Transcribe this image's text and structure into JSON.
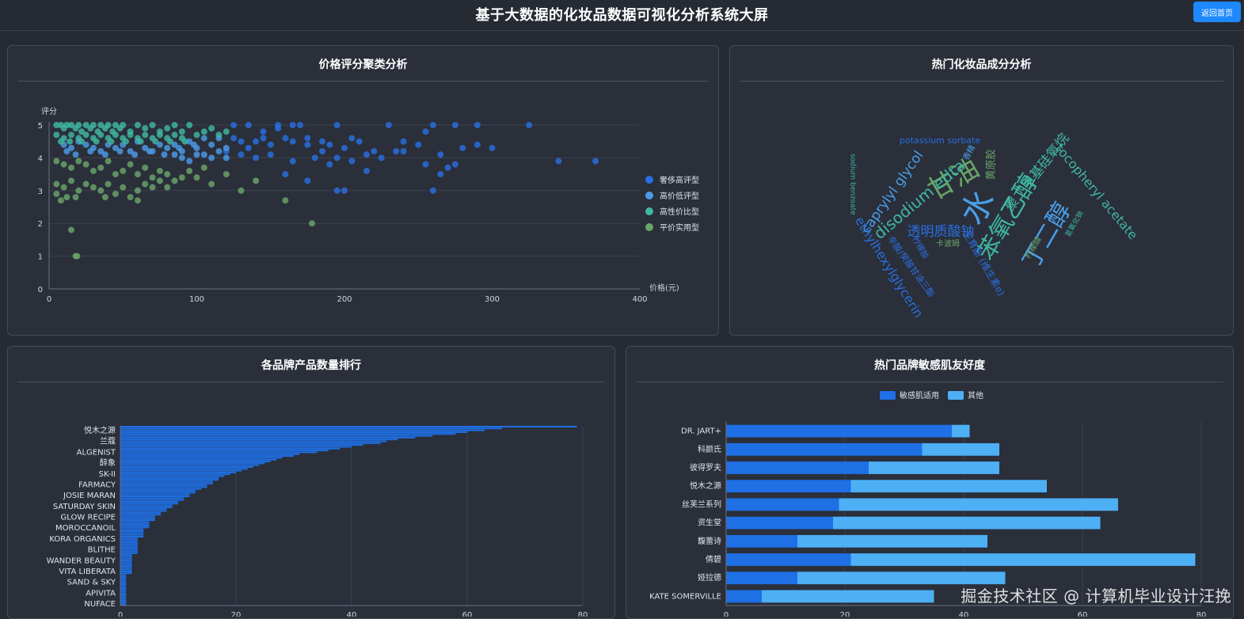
{
  "header": {
    "title": "基于大数据的化妆品数据可视化分析系统大屏",
    "back_label": "返回首页"
  },
  "panels": {
    "scatter": "价格评分聚类分析",
    "wordcloud": "热门化妆品成分分析",
    "brands": "各品牌产品数量排行",
    "sensitive": "热门品牌敏感肌友好度"
  },
  "watermark": "掘金技术社区 @ 计算机毕业设计汪挽",
  "colors": {
    "luxury": "#2a6fe0",
    "highlow": "#4c9be8",
    "value": "#3fb7a2",
    "budget": "#6aa56a",
    "bar": "#1f6fe5",
    "bar_light": "#4db0f5"
  },
  "chart_data": [
    {
      "id": "scatter",
      "type": "scatter",
      "xlabel": "价格(元)",
      "ylabel": "评分",
      "xlim": [
        0,
        400
      ],
      "ylim": [
        0,
        5
      ],
      "xticks": [
        0,
        100,
        200,
        300,
        400
      ],
      "yticks": [
        0,
        1,
        2,
        3,
        4,
        5
      ],
      "legend_position": "right",
      "series": [
        {
          "name": "奢侈高评型",
          "color": "#2a6fe0",
          "points": [
            [
              125,
              5
            ],
            [
              135,
              5
            ],
            [
              155,
              5
            ],
            [
              165,
              5
            ],
            [
              170,
              5
            ],
            [
              195,
              5
            ],
            [
              230,
              5
            ],
            [
              260,
              5
            ],
            [
              275,
              5
            ],
            [
              290,
              5
            ],
            [
              325,
              5
            ],
            [
              125,
              4.6
            ],
            [
              130,
              4.5
            ],
            [
              140,
              4.5
            ],
            [
              145,
              4.6
            ],
            [
              150,
              4.4
            ],
            [
              160,
              4.6
            ],
            [
              165,
              4.5
            ],
            [
              175,
              4.6
            ],
            [
              185,
              4.5
            ],
            [
              190,
              4.4
            ],
            [
              200,
              4.3
            ],
            [
              210,
              4.5
            ],
            [
              220,
              4.2
            ],
            [
              235,
              4.2
            ],
            [
              240,
              4.5
            ],
            [
              250,
              4.4
            ],
            [
              255,
              4.8
            ],
            [
              280,
              4.3
            ],
            [
              290,
              4.4
            ],
            [
              300,
              4.3
            ],
            [
              130,
              4.1
            ],
            [
              140,
              4.0
            ],
            [
              150,
              4.1
            ],
            [
              165,
              3.9
            ],
            [
              180,
              4.0
            ],
            [
              190,
              3.8
            ],
            [
              195,
              4.0
            ],
            [
              205,
              3.9
            ],
            [
              215,
              4.1
            ],
            [
              225,
              4.0
            ],
            [
              240,
              4.2
            ],
            [
              255,
              3.8
            ],
            [
              265,
              4.1
            ],
            [
              275,
              3.8
            ],
            [
              345,
              3.9
            ],
            [
              370,
              3.9
            ],
            [
              160,
              3.5
            ],
            [
              175,
              3.3
            ],
            [
              195,
              3.0
            ],
            [
              200,
              3.0
            ],
            [
              215,
              3.6
            ],
            [
              260,
              3.0
            ],
            [
              265,
              3.5
            ],
            [
              270,
              3.7
            ],
            [
              145,
              4.8
            ],
            [
              155,
              4.9
            ],
            [
              175,
              4.4
            ],
            [
              185,
              4.2
            ],
            [
              205,
              4.6
            ],
            [
              120,
              4.2
            ],
            [
              135,
              4.3
            ]
          ]
        },
        {
          "name": "高价低评型",
          "color": "#4c9be8",
          "points": [
            [
              80,
              4.3
            ],
            [
              85,
              4.4
            ],
            [
              90,
              4.2
            ],
            [
              95,
              4.5
            ],
            [
              100,
              4.3
            ],
            [
              105,
              4.1
            ],
            [
              110,
              4.4
            ],
            [
              115,
              4.6
            ],
            [
              120,
              4.3
            ],
            [
              90,
              4.0
            ],
            [
              100,
              4.1
            ],
            [
              110,
              4.0
            ],
            [
              105,
              4.6
            ],
            [
              115,
              4.2
            ],
            [
              120,
              4.0
            ],
            [
              85,
              4.1
            ],
            [
              95,
              3.9
            ],
            [
              75,
              4.4
            ],
            [
              70,
              4.2
            ],
            [
              65,
              4.3
            ],
            [
              60,
              4.5
            ],
            [
              55,
              4.2
            ],
            [
              50,
              4.4
            ],
            [
              45,
              4.3
            ],
            [
              40,
              4.4
            ],
            [
              35,
              4.2
            ],
            [
              30,
              4.3
            ],
            [
              25,
              4.4
            ],
            [
              20,
              4.5
            ],
            [
              15,
              4.3
            ],
            [
              10,
              4.4
            ],
            [
              12,
              4.2
            ],
            [
              18,
              4.1
            ],
            [
              28,
              4.2
            ],
            [
              38,
              4.1
            ],
            [
              48,
              4.2
            ],
            [
              58,
              4.1
            ],
            [
              68,
              4.2
            ],
            [
              78,
              4.1
            ],
            [
              88,
              4.3
            ],
            [
              98,
              4.4
            ]
          ]
        },
        {
          "name": "高性价比型",
          "color": "#3fb7a2",
          "points": [
            [
              5,
              5
            ],
            [
              8,
              5
            ],
            [
              10,
              4.9
            ],
            [
              12,
              5
            ],
            [
              15,
              5
            ],
            [
              18,
              4.9
            ],
            [
              20,
              5
            ],
            [
              22,
              4.8
            ],
            [
              25,
              5
            ],
            [
              28,
              4.9
            ],
            [
              30,
              5
            ],
            [
              33,
              4.8
            ],
            [
              35,
              5
            ],
            [
              38,
              4.9
            ],
            [
              40,
              5
            ],
            [
              43,
              4.8
            ],
            [
              45,
              5
            ],
            [
              48,
              4.9
            ],
            [
              50,
              5
            ],
            [
              55,
              4.8
            ],
            [
              60,
              5
            ],
            [
              65,
              4.9
            ],
            [
              70,
              5
            ],
            [
              75,
              4.8
            ],
            [
              80,
              4.9
            ],
            [
              85,
              5
            ],
            [
              90,
              4.8
            ],
            [
              95,
              5
            ],
            [
              5,
              4.7
            ],
            [
              10,
              4.6
            ],
            [
              15,
              4.7
            ],
            [
              20,
              4.6
            ],
            [
              25,
              4.7
            ],
            [
              30,
              4.6
            ],
            [
              35,
              4.7
            ],
            [
              40,
              4.6
            ],
            [
              45,
              4.7
            ],
            [
              50,
              4.6
            ],
            [
              55,
              4.7
            ],
            [
              60,
              4.6
            ],
            [
              65,
              4.7
            ],
            [
              70,
              4.6
            ],
            [
              75,
              4.7
            ],
            [
              80,
              4.6
            ],
            [
              85,
              4.7
            ],
            [
              90,
              4.6
            ],
            [
              100,
              4.7
            ],
            [
              105,
              4.8
            ],
            [
              110,
              4.9
            ],
            [
              115,
              4.7
            ],
            [
              120,
              4.8
            ],
            [
              8,
              4.5
            ],
            [
              14,
              4.5
            ],
            [
              22,
              4.5
            ],
            [
              32,
              4.5
            ],
            [
              42,
              4.5
            ],
            [
              52,
              4.5
            ],
            [
              62,
              4.5
            ],
            [
              72,
              4.5
            ],
            [
              82,
              4.5
            ],
            [
              92,
              4.5
            ]
          ]
        },
        {
          "name": "平价实用型",
          "color": "#6aa56a",
          "points": [
            [
              5,
              3.9
            ],
            [
              10,
              3.8
            ],
            [
              15,
              3.7
            ],
            [
              20,
              3.9
            ],
            [
              25,
              3.8
            ],
            [
              30,
              3.6
            ],
            [
              35,
              3.7
            ],
            [
              40,
              3.9
            ],
            [
              45,
              3.5
            ],
            [
              50,
              3.6
            ],
            [
              55,
              3.8
            ],
            [
              60,
              3.5
            ],
            [
              65,
              3.7
            ],
            [
              70,
              3.4
            ],
            [
              75,
              3.6
            ],
            [
              80,
              3.5
            ],
            [
              85,
              3.3
            ],
            [
              90,
              3.4
            ],
            [
              95,
              3.6
            ],
            [
              5,
              3.2
            ],
            [
              10,
              3.1
            ],
            [
              15,
              3.3
            ],
            [
              20,
              3.0
            ],
            [
              25,
              3.2
            ],
            [
              30,
              3.1
            ],
            [
              35,
              3.0
            ],
            [
              40,
              3.2
            ],
            [
              45,
              2.9
            ],
            [
              50,
              3.1
            ],
            [
              55,
              2.8
            ],
            [
              60,
              3.0
            ],
            [
              65,
              3.2
            ],
            [
              70,
              3.1
            ],
            [
              75,
              3.3
            ],
            [
              80,
              3.1
            ],
            [
              5,
              2.9
            ],
            [
              8,
              2.7
            ],
            [
              12,
              2.8
            ],
            [
              18,
              2.8
            ],
            [
              38,
              2.8
            ],
            [
              60,
              2.7
            ],
            [
              160,
              2.7
            ],
            [
              178,
              2.0
            ],
            [
              15,
              1.8
            ],
            [
              18,
              1.0
            ],
            [
              19,
              1.0
            ],
            [
              110,
              3.2
            ],
            [
              120,
              3.5
            ],
            [
              130,
              3.0
            ],
            [
              140,
              3.3
            ],
            [
              100,
              3.4
            ],
            [
              105,
              3.7
            ]
          ]
        }
      ]
    },
    {
      "id": "wordcloud",
      "type": "wordcloud",
      "words": [
        {
          "text": "水",
          "color": "#4a9fe8"
        },
        {
          "text": "苯氧乙醇",
          "color": "#3fb7a2"
        },
        {
          "text": "甘油",
          "color": "#6aa56a"
        },
        {
          "text": "丁二醇",
          "color": "#4a9fe8"
        },
        {
          "text": "disodium edta",
          "color": "#3fb7a2"
        },
        {
          "text": "caprylyl glycol",
          "color": "#4a9fe8"
        },
        {
          "text": "ethylhexylglycerin",
          "color": "#2a6fe0"
        },
        {
          "text": "透明质酸钠",
          "color": "#2a6fe0"
        },
        {
          "text": "tocopheryl acetate",
          "color": "#3fb7a2"
        },
        {
          "text": "聚二甲基硅氧烷",
          "color": "#3fb7a2"
        },
        {
          "text": "potassium sorbate",
          "color": "#2a6fe0"
        },
        {
          "text": "sodium benzoate",
          "color": "#3fb7a2"
        },
        {
          "text": "黄原胶",
          "color": "#6aa56a"
        },
        {
          "text": "香精",
          "color": "#4a9fe8"
        },
        {
          "text": "卡波姆",
          "color": "#6aa56a"
        },
        {
          "text": "柠檬酸",
          "color": "#2a6fe0"
        },
        {
          "text": "柠檬酸",
          "color": "#6aa56a"
        },
        {
          "text": "氢氧化钠",
          "color": "#3fb7a2"
        },
        {
          "text": "生育酚 (维生素e)",
          "color": "#2a6fe0"
        },
        {
          "text": "辛酸/癸酸甘油三酯",
          "color": "#2a6fe0"
        }
      ]
    },
    {
      "id": "brands",
      "type": "bar",
      "orientation": "horizontal",
      "xlim": [
        0,
        80
      ],
      "xticks": [
        0,
        20,
        40,
        60,
        80
      ],
      "labeled_categories": [
        "悦木之源",
        "兰蔻",
        "ALGENIST",
        "醉象",
        "SK-II",
        "FARMACY",
        "JOSIE MARAN",
        "SATURDAY SKIN",
        "GLOW RECIPE",
        "MOROCCANOIL",
        "KORA ORGANICS",
        "BLITHE",
        "WANDER BEAUTY",
        "VITA LIBERATA",
        "SAND & SKY",
        "APIVITA",
        "NUFACE"
      ],
      "values": [
        79,
        66,
        63,
        60,
        58,
        54,
        51,
        48,
        46,
        45,
        42,
        40,
        38,
        36,
        34,
        31,
        30,
        28,
        27,
        26,
        25,
        24,
        23,
        22,
        21,
        20,
        19,
        18,
        17,
        17,
        16,
        16,
        15,
        15,
        14,
        13,
        13,
        12,
        12,
        11,
        11,
        10,
        10,
        9,
        9,
        8,
        8,
        7,
        7,
        6,
        6,
        6,
        5,
        5,
        5,
        5,
        4,
        4,
        4,
        4,
        4,
        3,
        3,
        3,
        3,
        3,
        3,
        3,
        3,
        3,
        2,
        2,
        2,
        2,
        2,
        2,
        2,
        2,
        2,
        2,
        2,
        1,
        1,
        1,
        1,
        1,
        1,
        1,
        1,
        1,
        1,
        1,
        1,
        1,
        1,
        1,
        1,
        1
      ]
    },
    {
      "id": "sensitive",
      "type": "bar",
      "orientation": "horizontal",
      "stacked": true,
      "xlim": [
        0,
        80
      ],
      "xticks": [
        0,
        20,
        40,
        60,
        80
      ],
      "legend_position": "top",
      "categories": [
        "DR. JART+",
        "科颜氏",
        "彼得罗夫",
        "悦木之源",
        "丝芙兰系列",
        "资生堂",
        "馥蕾诗",
        "倩碧",
        "娅拉德",
        "KATE SOMERVILLE"
      ],
      "series": [
        {
          "name": "敏感肌适用",
          "color": "#1f6fe5",
          "values": [
            38,
            33,
            24,
            21,
            19,
            18,
            12,
            21,
            12,
            6
          ]
        },
        {
          "name": "其他",
          "color": "#4db0f5",
          "values": [
            3,
            13,
            22,
            33,
            47,
            45,
            32,
            58,
            35,
            29
          ]
        }
      ]
    }
  ]
}
